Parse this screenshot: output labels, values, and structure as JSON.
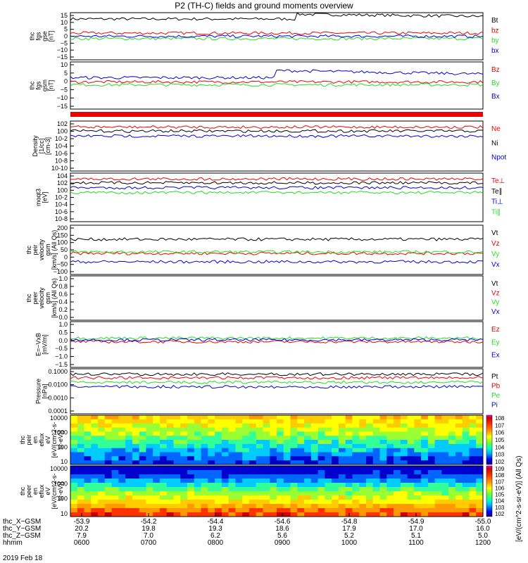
{
  "title": "P2 (TH-C) fields and ground moments overview",
  "footer_date": "2019 Feb 18",
  "colorbar_label": "[eV/(cm^2-s-sr-eV)] (All Qs)",
  "colorbar_ticks": [
    "10^8",
    "10^7",
    "10^6",
    "10^5",
    "10^4",
    "10^3",
    "10^2"
  ],
  "colorbar_ticks_2": [
    "10^9",
    "10^8",
    "10^7",
    "10^6",
    "10^5",
    "10^4",
    "10^3",
    "10^2"
  ],
  "colors": {
    "black": "#000000",
    "red": "#ee0000",
    "green": "#22dd22",
    "blue": "#0000dd"
  },
  "chart_data": [
    {
      "type": "line",
      "id": "fgs_gse",
      "ylabel": [
        "thc",
        "fgs",
        "gse",
        "[nT]"
      ],
      "ylim": [
        -15,
        15
      ],
      "yticks": [
        "15",
        "10",
        "5",
        "0",
        "−5",
        "−10",
        "−15"
      ],
      "series": [
        {
          "name": "Bt",
          "color": "black",
          "level": 12
        },
        {
          "name": "bz",
          "color": "red",
          "level": 2
        },
        {
          "name": "by",
          "color": "green",
          "level": -1.5
        },
        {
          "name": "bx",
          "color": "blue",
          "level": 0
        }
      ]
    },
    {
      "type": "line",
      "id": "fgs_gsm",
      "ylabel": [
        "thc",
        "fgs",
        "gsm",
        "[nT]"
      ],
      "ylim": [
        -18,
        15
      ],
      "yticks": [
        "10",
        "5",
        "0",
        "−5",
        "−10",
        "−15"
      ],
      "series": [
        {
          "name": "Bz",
          "color": "red",
          "level": 1
        },
        {
          "name": "By",
          "color": "green",
          "level": -1
        },
        {
          "name": "Bx",
          "color": "blue",
          "level": 5
        }
      ]
    },
    {
      "type": "line",
      "id": "density",
      "ylabel": [
        "Density",
        "[1/cc]",
        "[cm-3]"
      ],
      "scale": "log",
      "yticks": [
        "10^2",
        "10^0",
        "10^-2",
        "10^-4",
        "10^-6",
        "10^-8",
        "10^-10"
      ],
      "series": [
        {
          "name": "Ne",
          "color": "red"
        },
        {
          "name": "Ni",
          "color": "black"
        },
        {
          "name": "Npot",
          "color": "blue"
        }
      ]
    },
    {
      "type": "line",
      "id": "temperature",
      "ylabel": [
        "moqt3",
        "[eV]"
      ],
      "scale": "log",
      "yticks": [
        "10^4",
        "10^2",
        "10^0",
        "10^-2",
        "10^-4",
        "10^-6",
        "10^-8"
      ],
      "series": [
        {
          "name": "Te⊥",
          "color": "red"
        },
        {
          "name": "Te∥",
          "color": "black"
        },
        {
          "name": "Ti⊥",
          "color": "blue"
        },
        {
          "name": "Ti∥",
          "color": "green"
        }
      ]
    },
    {
      "type": "line",
      "id": "peir_velocity",
      "ylabel": [
        "thc",
        "peir",
        "velocity",
        "gsm",
        "[km/s] (All Qs)"
      ],
      "ylim": [
        -150,
        200
      ],
      "yticks": [
        "200",
        "150",
        "100",
        "50",
        "0",
        "−50",
        "−100"
      ],
      "series": [
        {
          "name": "Vt",
          "color": "black",
          "level": 100
        },
        {
          "name": "Vz",
          "color": "red",
          "level": 0
        },
        {
          "name": "Vy",
          "color": "green",
          "level": 10
        },
        {
          "name": "Vx",
          "color": "blue",
          "level": -60
        }
      ]
    },
    {
      "type": "line",
      "id": "peer_velocity",
      "ylabel": [
        "thc",
        "peer",
        "velocity",
        "gsm",
        "[km/s] (All Qs)"
      ],
      "ylim": [
        0,
        1
      ],
      "yticks": [
        "1.0",
        "0.8",
        "0.6",
        "0.4",
        "0.2",
        "0.0"
      ],
      "series": [
        {
          "name": "Vt",
          "color": "black"
        },
        {
          "name": "Vz",
          "color": "red"
        },
        {
          "name": "Vy",
          "color": "green"
        },
        {
          "name": "Vx",
          "color": "blue"
        }
      ]
    },
    {
      "type": "line",
      "id": "efield",
      "ylabel": [
        "E=−VxB",
        "[mV/m]"
      ],
      "ylim": [
        -1.5,
        1.0
      ],
      "yticks": [
        "1.0",
        "0.5",
        "0.0",
        "−0.5",
        "−1.0",
        "−1.5"
      ],
      "series": [
        {
          "name": "Ez",
          "color": "red",
          "level": -0.1
        },
        {
          "name": "Ey",
          "color": "green",
          "level": 0.1
        },
        {
          "name": "Ex",
          "color": "blue",
          "level": 0
        }
      ]
    },
    {
      "type": "line",
      "id": "pressure",
      "ylabel": [
        "Pressure",
        "[nPa]"
      ],
      "scale": "log",
      "yticks": [
        "0.1000",
        "0.0100",
        "0.0010",
        "0.0001"
      ],
      "series": [
        {
          "name": "Pt",
          "color": "black"
        },
        {
          "name": "Pb",
          "color": "red"
        },
        {
          "name": "Pe",
          "color": "green"
        },
        {
          "name": "Pi",
          "color": "blue"
        }
      ]
    },
    {
      "type": "heatmap",
      "id": "peir_spec",
      "ylabel": [
        "thc",
        "peir",
        "en",
        "eflux",
        "eV",
        "[eV/(cm^2-s-",
        "sr-eV)]"
      ],
      "yticks": [
        "10000",
        "1000",
        "100",
        "10"
      ]
    },
    {
      "type": "heatmap",
      "id": "peer_spec",
      "ylabel": [
        "thc",
        "peer",
        "en",
        "eflux",
        "eV",
        "[eV/(cm^2-s-",
        "sr-eV)]"
      ],
      "yticks": [
        "10000",
        "1000",
        "100",
        "10"
      ]
    }
  ],
  "x_axis": {
    "rows": [
      {
        "label": "thc_X−GSM",
        "values": [
          "-53.9",
          "-54.2",
          "-54.4",
          "-54.6",
          "-54.8",
          "-54.9",
          "-55.0"
        ]
      },
      {
        "label": "thc_Y−GSM",
        "values": [
          "20.2",
          "19.8",
          "19.3",
          "18.6",
          "17.9",
          "17.0",
          "16.0"
        ]
      },
      {
        "label": "thc_Z−GSM",
        "values": [
          "7.9",
          "7.0",
          "6.2",
          "5.6",
          "5.2",
          "5.1",
          "5.0"
        ]
      },
      {
        "label": "hhmm",
        "values": [
          "0600",
          "0700",
          "0800",
          "0900",
          "1000",
          "1100",
          "1200"
        ]
      }
    ]
  }
}
